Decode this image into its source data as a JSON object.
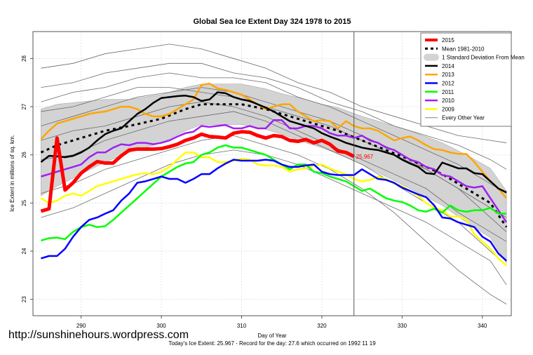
{
  "chart_data": {
    "type": "line",
    "title": "Global Sea Ice Extent Day 324 1978 to 2015",
    "xlabel": "Day of Year",
    "ylabel": "Ice Extent in millions of sq. km.",
    "footer": "Today's Ice Extent: 25.967  - Record for the day: 27.6 which occurred on 1992 11 19",
    "xlim": [
      284,
      343.6
    ],
    "ylim": [
      22.66,
      28.56
    ],
    "x_ticks": [
      290,
      300,
      310,
      320,
      330,
      340
    ],
    "y_ticks": [
      23,
      24,
      25,
      26,
      27,
      28
    ],
    "grid": true,
    "current_day": 324,
    "current_value_label": "25.967",
    "legend_position": "top-right",
    "legend": [
      {
        "label": "2015",
        "color": "#ff0000",
        "style": "thick"
      },
      {
        "label": "Mean 1981-2010",
        "color": "#000000",
        "style": "dashed"
      },
      {
        "label": "1 Standard Deviation From Mean",
        "color": "#d3d3d3",
        "style": "band"
      },
      {
        "label": "2014",
        "color": "#000000",
        "style": "solid"
      },
      {
        "label": "2013",
        "color": "#ffa500",
        "style": "solid"
      },
      {
        "label": "2012",
        "color": "#0000ff",
        "style": "solid"
      },
      {
        "label": "2011",
        "color": "#00ff00",
        "style": "solid"
      },
      {
        "label": "2010",
        "color": "#a020f0",
        "style": "solid"
      },
      {
        "label": "2009",
        "color": "#ffff00",
        "style": "solid"
      },
      {
        "label": "Every Other Year",
        "color": "#808080",
        "style": "thin"
      }
    ],
    "mean": {
      "x": [
        285,
        287,
        290,
        293,
        296,
        300,
        303,
        305,
        308,
        310,
        313,
        315,
        318,
        320,
        322,
        325,
        328,
        331,
        335,
        338,
        341,
        343
      ],
      "y": [
        26.05,
        26.2,
        26.35,
        26.5,
        26.6,
        26.75,
        26.95,
        27.05,
        27.05,
        27.05,
        26.95,
        26.85,
        26.7,
        26.6,
        26.5,
        26.3,
        26.1,
        25.9,
        25.6,
        25.3,
        25.0,
        24.5
      ],
      "sd": [
        0.9,
        0.85,
        0.75,
        0.65,
        0.55,
        0.5,
        0.45,
        0.42,
        0.42,
        0.42,
        0.42,
        0.42,
        0.45,
        0.45,
        0.48,
        0.5,
        0.55,
        0.6,
        0.65,
        0.7,
        0.72,
        0.75
      ]
    },
    "series": [
      {
        "name": "2015",
        "color": "#ff0000",
        "width": 5,
        "x_start": 285,
        "values": [
          24.83,
          24.88,
          26.35,
          25.27,
          25.42,
          25.62,
          25.75,
          25.86,
          25.83,
          25.83,
          25.98,
          26.1,
          26.12,
          26.12,
          26.12,
          26.13,
          26.17,
          26.22,
          26.3,
          26.35,
          26.43,
          26.38,
          26.37,
          26.35,
          26.45,
          26.48,
          26.47,
          26.4,
          26.35,
          26.4,
          26.38,
          26.3,
          26.28,
          26.32,
          26.25,
          26.3,
          26.22,
          26.08,
          26.05,
          25.967
        ]
      },
      {
        "name": "2014",
        "color": "#000000",
        "width": 2.5,
        "x_start": 285,
        "values": [
          25.85,
          25.98,
          25.97,
          25.95,
          25.98,
          26.05,
          26.15,
          26.3,
          26.43,
          26.5,
          26.55,
          26.7,
          26.85,
          26.95,
          27.08,
          27.18,
          27.2,
          27.22,
          27.23,
          27.2,
          27.12,
          27.15,
          27.3,
          27.28,
          27.2,
          27.15,
          27.12,
          27.05,
          26.98,
          26.9,
          26.8,
          26.7,
          26.65,
          26.6,
          26.55,
          26.45,
          26.38,
          26.32,
          26.25,
          26.2,
          26.15,
          26.12,
          26.1,
          26.05,
          26.0,
          25.9,
          25.82,
          25.75,
          25.62,
          25.6,
          25.84,
          25.78,
          25.72,
          25.72,
          25.62,
          25.6,
          25.45,
          25.3,
          25.22
        ]
      },
      {
        "name": "2013",
        "color": "#ffa500",
        "width": 2.5,
        "x_start": 285,
        "values": [
          26.33,
          26.5,
          26.65,
          26.7,
          26.75,
          26.8,
          26.85,
          26.88,
          26.9,
          26.95,
          27.0,
          27.0,
          26.95,
          26.85,
          26.8,
          26.8,
          26.85,
          26.95,
          27.05,
          27.15,
          27.45,
          27.48,
          27.38,
          27.35,
          27.3,
          27.25,
          27.15,
          27.05,
          26.95,
          27.0,
          27.05,
          27.05,
          26.9,
          26.8,
          26.7,
          26.72,
          26.7,
          26.55,
          26.7,
          26.6,
          26.55,
          26.55,
          26.5,
          26.4,
          26.3,
          26.35,
          26.38,
          26.3,
          26.2,
          26.12,
          26.1,
          26.05,
          26.02,
          26.02,
          25.85,
          25.65,
          25.45,
          25.3,
          25.1
        ]
      },
      {
        "name": "2012",
        "color": "#0000ff",
        "width": 2.5,
        "x_start": 285,
        "values": [
          23.85,
          23.9,
          23.9,
          24.05,
          24.3,
          24.5,
          24.65,
          24.7,
          24.78,
          24.85,
          25.05,
          25.2,
          25.42,
          25.45,
          25.5,
          25.55,
          25.5,
          25.5,
          25.42,
          25.5,
          25.6,
          25.6,
          25.72,
          25.82,
          25.9,
          25.88,
          25.88,
          25.88,
          25.9,
          25.88,
          25.8,
          25.75,
          25.75,
          25.78,
          25.8,
          25.65,
          25.6,
          25.58,
          25.58,
          25.58,
          25.7,
          25.6,
          25.5,
          25.48,
          25.42,
          25.32,
          25.25,
          25.18,
          25.12,
          24.95,
          24.7,
          24.68,
          24.6,
          24.55,
          24.5,
          24.3,
          24.2,
          23.95,
          23.8
        ]
      },
      {
        "name": "2011",
        "color": "#00ff00",
        "width": 2.5,
        "x_start": 285,
        "values": [
          24.22,
          24.27,
          24.28,
          24.25,
          24.4,
          24.5,
          24.55,
          24.5,
          24.52,
          24.65,
          24.8,
          24.95,
          25.1,
          25.25,
          25.4,
          25.55,
          25.65,
          25.75,
          25.82,
          25.85,
          26.0,
          26.05,
          26.15,
          26.2,
          26.15,
          26.15,
          26.1,
          26.05,
          26.0,
          25.9,
          25.8,
          25.7,
          25.8,
          25.8,
          25.65,
          25.62,
          25.55,
          25.5,
          25.45,
          25.35,
          25.25,
          25.3,
          25.2,
          25.1,
          25.05,
          25.02,
          24.95,
          24.85,
          24.82,
          24.88,
          24.8,
          24.95,
          24.85,
          24.82,
          24.85,
          24.85,
          24.9,
          24.78,
          24.78
        ]
      },
      {
        "name": "2010",
        "color": "#a020f0",
        "width": 2.5,
        "x_start": 285,
        "values": [
          25.55,
          25.6,
          25.65,
          25.7,
          25.75,
          25.8,
          25.95,
          26.05,
          26.05,
          26.15,
          26.22,
          26.2,
          26.25,
          26.25,
          26.22,
          26.25,
          26.3,
          26.38,
          26.45,
          26.48,
          26.6,
          26.58,
          26.6,
          26.62,
          26.55,
          26.55,
          26.6,
          26.55,
          26.55,
          26.72,
          26.72,
          26.55,
          26.55,
          26.6,
          26.6,
          26.55,
          26.45,
          26.4,
          26.4,
          26.35,
          26.4,
          26.3,
          26.25,
          26.15,
          26.1,
          26.0,
          25.9,
          25.85,
          25.75,
          25.7,
          25.58,
          25.55,
          25.45,
          25.35,
          25.32,
          25.35,
          25.1,
          24.85,
          24.6
        ]
      },
      {
        "name": "2009",
        "color": "#ffff00",
        "width": 2.5,
        "x_start": 285,
        "values": [
          25.1,
          25.0,
          25.05,
          25.15,
          25.2,
          25.15,
          25.25,
          25.35,
          25.4,
          25.45,
          25.5,
          25.55,
          25.6,
          25.62,
          25.6,
          25.65,
          25.75,
          25.9,
          26.05,
          26.05,
          25.95,
          25.95,
          25.85,
          25.85,
          25.88,
          25.92,
          25.9,
          25.8,
          25.78,
          25.78,
          25.75,
          25.65,
          25.7,
          25.72,
          25.78,
          25.8,
          25.72,
          25.65,
          25.6,
          25.5,
          25.45,
          25.48,
          25.55,
          25.5,
          25.4,
          25.35,
          25.25,
          25.15,
          25.0,
          24.9,
          24.85,
          24.72,
          24.72,
          24.65,
          24.35,
          24.2,
          24.05,
          23.85,
          23.7
        ]
      }
    ],
    "other_years": {
      "x": [
        285,
        289,
        293,
        297,
        301,
        305,
        309,
        313,
        317,
        321,
        325,
        329,
        333,
        337,
        341,
        343
      ],
      "series": [
        [
          27.8,
          27.9,
          28.1,
          28.2,
          28.3,
          28.2,
          28.0,
          27.8,
          27.5,
          27.3,
          27.0,
          26.8,
          26.6,
          26.4,
          26.3,
          26.25
        ],
        [
          27.1,
          27.3,
          27.4,
          27.6,
          27.7,
          27.6,
          27.6,
          27.5,
          27.2,
          27.0,
          26.7,
          26.4,
          26.1,
          25.8,
          25.4,
          25.2
        ],
        [
          26.6,
          26.8,
          27.0,
          27.2,
          27.3,
          27.4,
          27.3,
          27.1,
          26.9,
          26.7,
          26.4,
          26.1,
          25.7,
          25.3,
          24.9,
          24.7
        ],
        [
          26.3,
          26.5,
          26.6,
          26.8,
          27.0,
          27.1,
          27.0,
          26.8,
          26.5,
          26.2,
          25.9,
          25.6,
          25.3,
          24.8,
          24.4,
          24.2
        ],
        [
          25.9,
          26.0,
          26.3,
          26.5,
          26.7,
          26.8,
          26.9,
          26.7,
          26.4,
          26.1,
          25.8,
          25.4,
          25.0,
          24.6,
          24.0,
          23.7
        ],
        [
          25.2,
          25.4,
          25.7,
          25.9,
          26.1,
          26.3,
          26.4,
          26.2,
          26.0,
          25.7,
          25.3,
          24.8,
          24.2,
          23.6,
          23.1,
          22.9
        ],
        [
          26.9,
          27.0,
          27.2,
          27.4,
          27.4,
          27.3,
          27.2,
          27.0,
          26.8,
          26.6,
          26.3,
          26.0,
          25.7,
          25.3,
          24.7,
          24.4
        ],
        [
          27.4,
          27.5,
          27.7,
          27.8,
          27.9,
          27.9,
          27.7,
          27.6,
          27.4,
          27.1,
          26.9,
          26.6,
          26.4,
          26.2,
          25.9,
          25.7
        ],
        [
          24.7,
          24.9,
          25.2,
          25.5,
          25.8,
          26.0,
          26.1,
          26.0,
          25.8,
          25.5,
          25.2,
          24.9,
          24.6,
          24.2,
          23.8,
          23.3
        ]
      ]
    }
  },
  "watermark": "http://sunshinehours.wordpress.com"
}
